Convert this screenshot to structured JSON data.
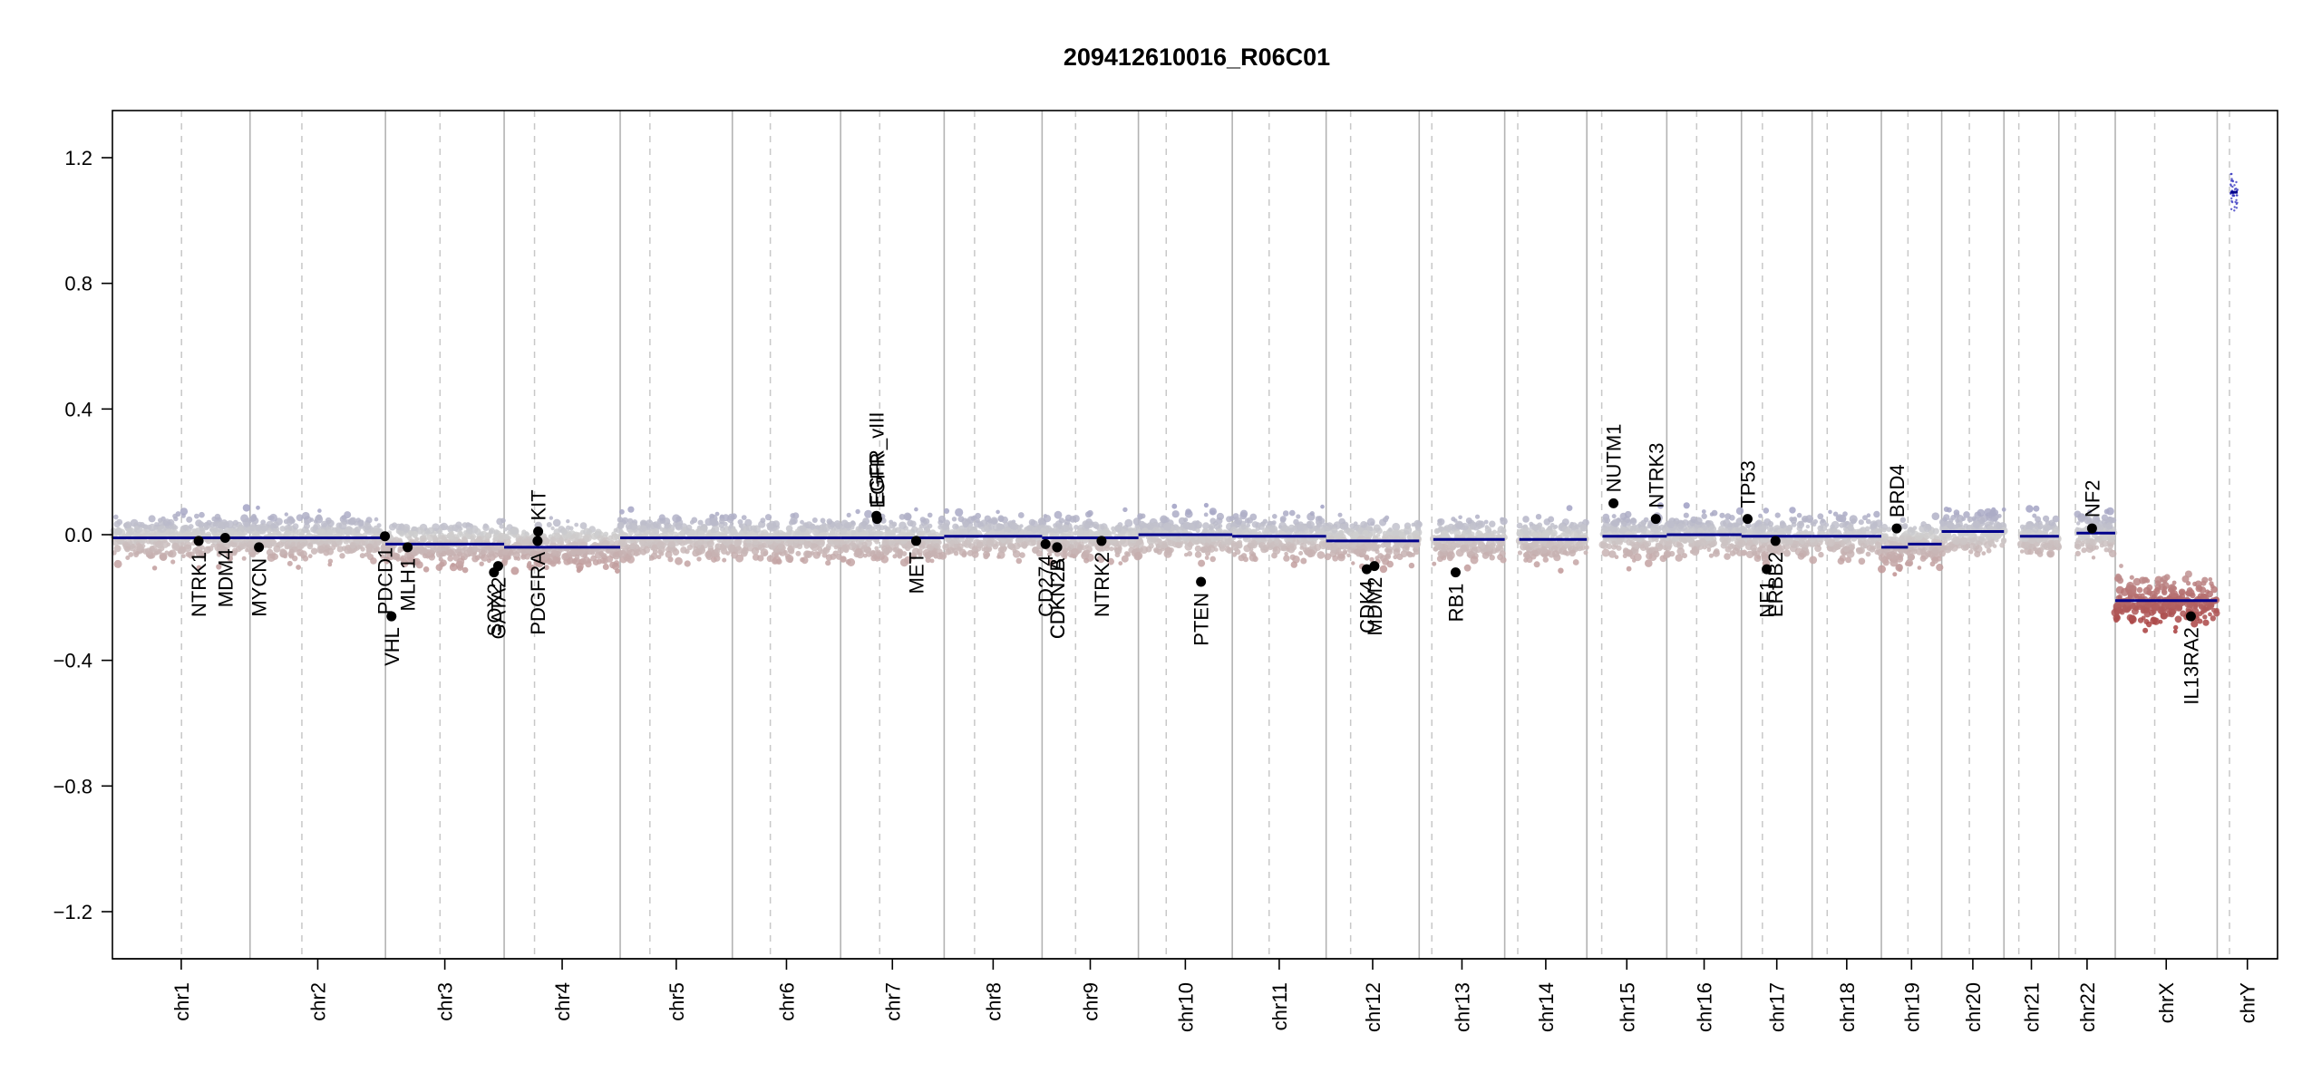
{
  "chart_data": {
    "type": "scatter",
    "title": "209412610016_R06C01",
    "xlabel": "",
    "ylabel": "",
    "ylim": [
      -1.35,
      1.35
    ],
    "yticks": [
      1.2,
      0.8,
      0.4,
      0.0,
      -0.4,
      -0.8,
      -1.2
    ],
    "ytick_labels": [
      "1.2",
      "0.8",
      "0.4",
      "0.0",
      "−0.4",
      "−0.8",
      "−1.2"
    ],
    "grid": false,
    "colors": {
      "gain": "#8f8fbf",
      "neutral": "#cfcfcf",
      "loss": "#a83c3c",
      "segment": "#00008b",
      "gene_point": "#000000",
      "chrom_border": "#b3b3b3",
      "centromere": "#c8c8c8"
    },
    "chromosomes": [
      {
        "name": "chr1",
        "length": 249,
        "centromere": 125,
        "segments": [
          {
            "from": 0,
            "to": 249,
            "value": -0.01
          }
        ]
      },
      {
        "name": "chr2",
        "length": 243,
        "centromere": 93,
        "segments": [
          {
            "from": 0,
            "to": 243,
            "value": -0.01
          }
        ]
      },
      {
        "name": "chr3",
        "length": 198,
        "centromere": 91,
        "segments": [
          {
            "from": 0,
            "to": 198,
            "value": -0.03
          }
        ]
      },
      {
        "name": "chr4",
        "length": 191,
        "centromere": 50,
        "segments": [
          {
            "from": 0,
            "to": 191,
            "value": -0.04
          }
        ]
      },
      {
        "name": "chr5",
        "length": 181,
        "centromere": 48,
        "segments": [
          {
            "from": 0,
            "to": 181,
            "value": -0.01
          }
        ]
      },
      {
        "name": "chr6",
        "length": 171,
        "centromere": 60,
        "segments": [
          {
            "from": 0,
            "to": 171,
            "value": -0.01
          }
        ]
      },
      {
        "name": "chr7",
        "length": 159,
        "centromere": 60,
        "segments": [
          {
            "from": 0,
            "to": 159,
            "value": -0.01
          }
        ]
      },
      {
        "name": "chr8",
        "length": 145,
        "centromere": 45,
        "segments": [
          {
            "from": 0,
            "to": 145,
            "value": -0.005
          }
        ]
      },
      {
        "name": "chr9",
        "length": 141,
        "centromere": 49,
        "segments": [
          {
            "from": 0,
            "to": 141,
            "value": -0.01
          }
        ]
      },
      {
        "name": "chr10",
        "length": 135,
        "centromere": 40,
        "segments": [
          {
            "from": 0,
            "to": 135,
            "value": 0.0
          }
        ]
      },
      {
        "name": "chr11",
        "length": 135,
        "centromere": 53,
        "segments": [
          {
            "from": 0,
            "to": 135,
            "value": -0.005
          }
        ]
      },
      {
        "name": "chr12",
        "length": 133,
        "centromere": 35,
        "segments": [
          {
            "from": 0,
            "to": 133,
            "value": -0.02
          }
        ]
      },
      {
        "name": "chr13",
        "length": 115,
        "centromere": 17,
        "segments": [
          {
            "from": 19,
            "to": 115,
            "value": -0.015
          }
        ]
      },
      {
        "name": "chr14",
        "length": 107,
        "centromere": 17,
        "segments": [
          {
            "from": 19,
            "to": 107,
            "value": -0.015
          }
        ]
      },
      {
        "name": "chr15",
        "length": 102,
        "centromere": 19,
        "segments": [
          {
            "from": 20,
            "to": 102,
            "value": -0.005
          }
        ]
      },
      {
        "name": "chr16",
        "length": 90,
        "centromere": 36,
        "segments": [
          {
            "from": 0,
            "to": 90,
            "value": 0.0
          }
        ]
      },
      {
        "name": "chr17",
        "length": 81,
        "centromere": 24,
        "segments": [
          {
            "from": 0,
            "to": 81,
            "value": -0.005
          }
        ]
      },
      {
        "name": "chr18",
        "length": 78,
        "centromere": 17,
        "segments": [
          {
            "from": 0,
            "to": 78,
            "value": -0.005
          }
        ]
      },
      {
        "name": "chr19",
        "length": 59,
        "centromere": 26,
        "segments": [
          {
            "from": 0,
            "to": 26,
            "value": -0.04
          },
          {
            "from": 26,
            "to": 59,
            "value": -0.03
          }
        ]
      },
      {
        "name": "chr20",
        "length": 63,
        "centromere": 28,
        "segments": [
          {
            "from": 0,
            "to": 63,
            "value": 0.01
          }
        ]
      },
      {
        "name": "chr21",
        "length": 48,
        "centromere": 13,
        "segments": [
          {
            "from": 14,
            "to": 48,
            "value": -0.005
          }
        ]
      },
      {
        "name": "chr22",
        "length": 51,
        "centromere": 15,
        "segments": [
          {
            "from": 16,
            "to": 51,
            "value": 0.005
          }
        ]
      },
      {
        "name": "chrX",
        "length": 155,
        "centromere": 60,
        "segments": [
          {
            "from": 0,
            "to": 155,
            "value": -0.21
          }
        ]
      },
      {
        "name": "chrY",
        "length": 59,
        "centromere": 12,
        "segments": [
          {
            "from": 13,
            "to": 20,
            "value": 1.09
          }
        ]
      }
    ],
    "genes": [
      {
        "name": "NTRK1",
        "chr": "chr1",
        "pos": 156,
        "value": -0.02
      },
      {
        "name": "MDM4",
        "chr": "chr1",
        "pos": 204,
        "value": -0.01
      },
      {
        "name": "MYCN",
        "chr": "chr2",
        "pos": 16,
        "value": -0.04
      },
      {
        "name": "VHL",
        "chr": "chr3",
        "pos": 10,
        "value": -0.26
      },
      {
        "name": "PDCD1",
        "chr": "chr2",
        "pos": 242,
        "value": -0.005
      },
      {
        "name": "MLH1",
        "chr": "chr3",
        "pos": 37,
        "value": -0.04
      },
      {
        "name": "SOX2",
        "chr": "chr3",
        "pos": 181,
        "value": -0.12
      },
      {
        "name": "GATA2",
        "chr": "chr3",
        "pos": 188,
        "value": -0.1
      },
      {
        "name": "PDGFRA",
        "chr": "chr4",
        "pos": 55,
        "value": -0.02
      },
      {
        "name": "KIT",
        "chr": "chr4",
        "pos": 56,
        "value": 0.01
      },
      {
        "name": "EGFR_vIII",
        "chr": "chr7",
        "pos": 55,
        "value": 0.06
      },
      {
        "name": "EGFR",
        "chr": "chr7",
        "pos": 56,
        "value": 0.05
      },
      {
        "name": "MET",
        "chr": "chr7",
        "pos": 116,
        "value": -0.02
      },
      {
        "name": "CD274",
        "chr": "chr9",
        "pos": 5,
        "value": -0.03
      },
      {
        "name": "CDKN2A",
        "chr": "chr9",
        "pos": 22,
        "value": -0.04
      },
      {
        "name": "CDKN2B",
        "chr": "chr9",
        "pos": 22,
        "value": -0.04
      },
      {
        "name": "NTRK2",
        "chr": "chr9",
        "pos": 87,
        "value": -0.02
      },
      {
        "name": "PTEN",
        "chr": "chr10",
        "pos": 90,
        "value": -0.15
      },
      {
        "name": "CDK4",
        "chr": "chr12",
        "pos": 58,
        "value": -0.11
      },
      {
        "name": "MDM2",
        "chr": "chr12",
        "pos": 69,
        "value": -0.1
      },
      {
        "name": "RB1",
        "chr": "chr13",
        "pos": 49,
        "value": -0.12
      },
      {
        "name": "NUTM1",
        "chr": "chr15",
        "pos": 34,
        "value": 0.1
      },
      {
        "name": "NTRK3",
        "chr": "chr15",
        "pos": 88,
        "value": 0.05
      },
      {
        "name": "TP53",
        "chr": "chr17",
        "pos": 7,
        "value": 0.05
      },
      {
        "name": "NF1",
        "chr": "chr17",
        "pos": 29,
        "value": -0.11
      },
      {
        "name": "ERBB2",
        "chr": "chr17",
        "pos": 39,
        "value": -0.02
      },
      {
        "name": "BRD4",
        "chr": "chr19",
        "pos": 15,
        "value": 0.02
      },
      {
        "name": "NF2",
        "chr": "chr22",
        "pos": 30,
        "value": 0.02
      },
      {
        "name": "IL13RA2",
        "chr": "chrX",
        "pos": 115,
        "value": -0.26
      }
    ]
  }
}
